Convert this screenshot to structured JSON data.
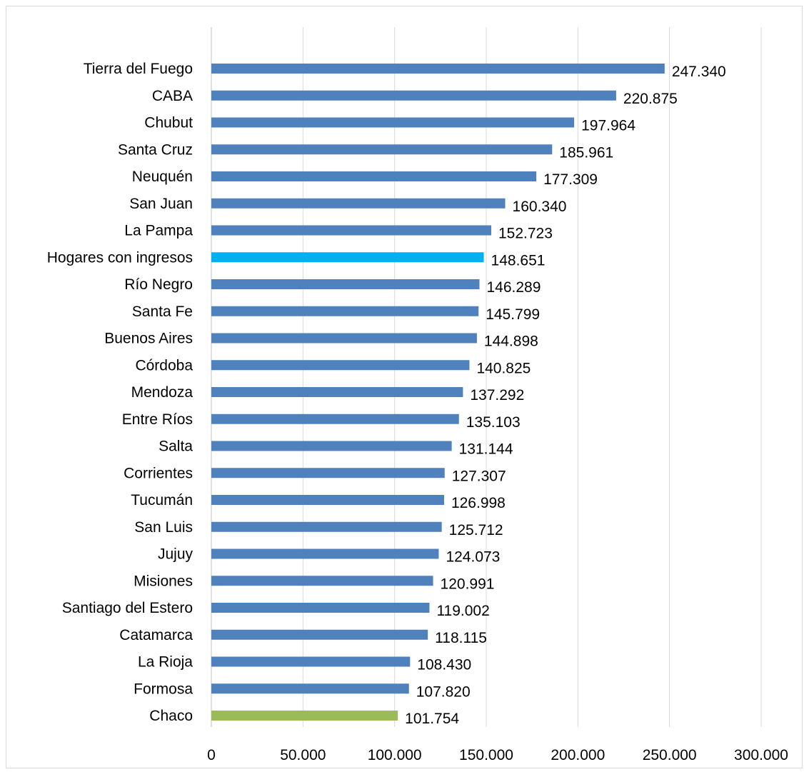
{
  "chart_data": {
    "type": "bar",
    "orientation": "horizontal",
    "title": "",
    "xlabel": "",
    "ylabel": "",
    "xlim": [
      0,
      300000
    ],
    "ticks": [
      0,
      50000,
      100000,
      150000,
      200000,
      250000,
      300000
    ],
    "tick_labels": [
      "0",
      "50.000",
      "100.000",
      "150.000",
      "200.000",
      "250.000",
      "300.000"
    ],
    "grid": true,
    "legend": "none",
    "categories": [
      "Tierra del Fuego",
      "CABA",
      "Chubut",
      "Santa Cruz",
      "Neuquén",
      "San Juan",
      "La Pampa",
      "Hogares con ingresos",
      "Río Negro",
      "Santa Fe",
      "Buenos Aires",
      "Córdoba",
      "Mendoza",
      "Entre Ríos",
      "Salta",
      "Corrientes",
      "Tucumán",
      "San Luis",
      "Jujuy",
      "Misiones",
      "Santiago del Estero",
      "Catamarca",
      "La Rioja",
      "Formosa",
      "Chaco"
    ],
    "values": [
      247340,
      220875,
      197964,
      185961,
      177309,
      160340,
      152723,
      148651,
      146289,
      145799,
      144898,
      140825,
      137292,
      135103,
      131144,
      127307,
      126998,
      125712,
      124073,
      120991,
      119002,
      118115,
      108430,
      107820,
      101754
    ],
    "value_labels": [
      "247.340",
      "220.875",
      "197.964",
      "185.961",
      "177.309",
      "160.340",
      "152.723",
      "148.651",
      "146.289",
      "145.799",
      "144.898",
      "140.825",
      "137.292",
      "135.103",
      "131.144",
      "127.307",
      "126.998",
      "125.712",
      "124.073",
      "120.991",
      "119.002",
      "118.115",
      "108.430",
      "107.820",
      "101.754"
    ],
    "colors": {
      "default": "#4f81bd",
      "highlight_average": "#00b0f0",
      "highlight_minimum": "#9bbb59"
    },
    "bar_colors": [
      "#4f81bd",
      "#4f81bd",
      "#4f81bd",
      "#4f81bd",
      "#4f81bd",
      "#4f81bd",
      "#4f81bd",
      "#00b0f0",
      "#4f81bd",
      "#4f81bd",
      "#4f81bd",
      "#4f81bd",
      "#4f81bd",
      "#4f81bd",
      "#4f81bd",
      "#4f81bd",
      "#4f81bd",
      "#4f81bd",
      "#4f81bd",
      "#4f81bd",
      "#4f81bd",
      "#4f81bd",
      "#4f81bd",
      "#4f81bd",
      "#9bbb59"
    ]
  }
}
